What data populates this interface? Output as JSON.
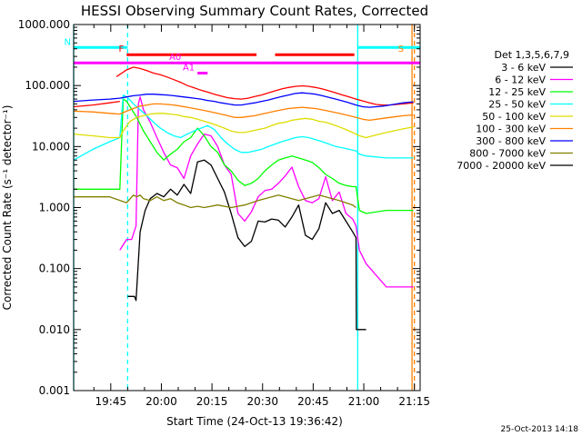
{
  "chart_data": {
    "type": "line",
    "title": "HESSI Observing Summary Count Rates, Corrected",
    "xlabel": "Start Time (24-Oct-13 19:36:42)",
    "ylabel": "Corrected Count Rate (s⁻¹ detector⁻¹)",
    "y_scale": "log",
    "ylim": [
      0.001,
      1000
    ],
    "xlim_minutes": [
      -2.7,
      100.0
    ],
    "y_ticks": [
      {
        "v": 1000,
        "label": "1000.000"
      },
      {
        "v": 100,
        "label": "100.000"
      },
      {
        "v": 10,
        "label": "10.000"
      },
      {
        "v": 1,
        "label": "1.000"
      },
      {
        "v": 0.1,
        "label": "0.100"
      },
      {
        "v": 0.01,
        "label": "0.010"
      },
      {
        "v": 0.001,
        "label": "0.001"
      }
    ],
    "x_ticks": [
      {
        "t": 8.3,
        "label": "19:45"
      },
      {
        "t": 23.3,
        "label": "20:00"
      },
      {
        "t": 38.3,
        "label": "20:15"
      },
      {
        "t": 53.3,
        "label": "20:30"
      },
      {
        "t": 68.3,
        "label": "20:45"
      },
      {
        "t": 83.3,
        "label": "21:00"
      },
      {
        "t": 98.3,
        "label": "21:15"
      }
    ],
    "legend_header": "Det 1,3,5,6,7,9",
    "series": [
      {
        "name": "3 - 6 keV",
        "color": "#000000",
        "x": [
          13.3,
          15.3,
          15.8,
          17,
          18.5,
          20,
          22,
          24,
          26,
          28,
          30,
          32,
          34,
          36,
          38,
          40,
          42,
          44,
          46,
          48,
          50,
          52,
          54,
          56,
          58,
          60,
          62,
          64,
          66,
          68,
          70,
          72,
          74,
          76,
          78,
          80,
          81,
          81.1,
          81.5,
          84
        ],
        "y": [
          0.035,
          0.035,
          0.03,
          0.4,
          0.9,
          1.4,
          1.7,
          1.5,
          2,
          1.6,
          2.4,
          1.7,
          5.6,
          6,
          5,
          3,
          1.8,
          0.8,
          0.32,
          0.23,
          0.28,
          0.6,
          0.58,
          0.65,
          0.62,
          0.48,
          0.7,
          1.1,
          0.35,
          0.3,
          0.45,
          1.2,
          0.8,
          0.9,
          0.6,
          0.4,
          0.32,
          0.01,
          0.01,
          0.01
        ]
      },
      {
        "name": "6 - 12 keV",
        "color": "#ff00ff",
        "x": [
          11,
          13,
          14.5,
          15.8,
          16.5,
          17,
          18,
          20,
          22,
          24,
          26,
          28,
          30,
          32,
          34,
          36,
          38,
          40,
          42,
          44,
          46,
          48,
          50,
          52,
          54,
          56,
          58,
          60,
          62,
          64,
          66,
          68,
          70,
          72,
          74,
          76,
          78,
          80,
          81,
          82,
          84,
          90,
          98
        ],
        "y": [
          0.2,
          0.3,
          0.3,
          0.5,
          50,
          65,
          40,
          25,
          14,
          8,
          5,
          4.5,
          3,
          7,
          11,
          16,
          15,
          10,
          5,
          3.5,
          0.8,
          0.6,
          0.85,
          1.5,
          1.9,
          2,
          2.5,
          3.3,
          4.6,
          2.2,
          1.3,
          1.2,
          1.4,
          3.2,
          1.3,
          1.8,
          0.8,
          0.65,
          0.5,
          0.2,
          0.12,
          0.05,
          0.05
        ]
      },
      {
        "name": "12 - 25 keV",
        "color": "#00ff00",
        "x": [
          -2.7,
          3,
          8,
          11,
          12,
          13,
          14,
          16,
          18,
          20,
          22,
          24,
          26,
          28,
          30,
          32,
          34,
          36,
          38,
          40,
          42,
          44,
          46,
          48,
          50,
          52,
          54,
          56,
          58,
          60,
          62,
          64,
          66,
          68,
          70,
          72,
          74,
          76,
          78,
          80,
          81,
          82,
          84,
          90,
          98
        ],
        "y": [
          2,
          2,
          2,
          2,
          60,
          55,
          45,
          30,
          18,
          12,
          8,
          6,
          7.5,
          9,
          12,
          14,
          20,
          15,
          10,
          8,
          5,
          4,
          2.8,
          2.3,
          2.5,
          3,
          4,
          5,
          6,
          6.5,
          7,
          6.5,
          6,
          5.5,
          4.5,
          3.5,
          3,
          2.5,
          2.3,
          2.2,
          2.2,
          0.9,
          0.8,
          0.9,
          0.9
        ]
      },
      {
        "name": "25 - 50 keV",
        "color": "#00ffff",
        "x": [
          -2.7,
          3,
          8,
          11,
          12,
          13,
          14,
          15,
          17,
          19,
          21,
          23,
          25,
          27,
          29,
          31,
          33,
          35,
          37,
          39,
          41,
          43,
          45,
          47,
          49,
          51,
          53,
          55,
          57,
          59,
          61,
          63,
          65,
          67,
          69,
          71,
          73,
          75,
          77,
          79,
          81,
          82,
          84,
          90,
          98
        ],
        "y": [
          6,
          9,
          12,
          14,
          70,
          65,
          58,
          50,
          40,
          32,
          25,
          20,
          17,
          15,
          14,
          16,
          18,
          20,
          22,
          19,
          14,
          11,
          9,
          8,
          8,
          8.5,
          9,
          10,
          11,
          12,
          13,
          14,
          14.5,
          14,
          13,
          12,
          11,
          10,
          9.5,
          9,
          8.5,
          7.5,
          7,
          6.5,
          6.5
        ]
      },
      {
        "name": "50 - 100 keV",
        "color": "#dddd00",
        "x": [
          -2.7,
          3,
          8,
          11,
          12,
          14,
          16,
          18,
          20,
          22,
          24,
          26,
          28,
          30,
          32,
          34,
          36,
          38,
          40,
          42,
          44,
          46,
          48,
          50,
          52,
          54,
          56,
          58,
          60,
          62,
          64,
          66,
          68,
          70,
          72,
          74,
          76,
          78,
          80,
          82,
          84,
          86,
          88,
          90,
          92,
          94,
          96,
          98
        ],
        "y": [
          16,
          15,
          14,
          14,
          18,
          26,
          30,
          32,
          34,
          35,
          35,
          34,
          33,
          31,
          30,
          28,
          26,
          24,
          22,
          20,
          18,
          17,
          17,
          18,
          19,
          20,
          22,
          24,
          25,
          27,
          28,
          29,
          28,
          26,
          25,
          23,
          21,
          19,
          17,
          15,
          14,
          15,
          16,
          17,
          18,
          19,
          20,
          21
        ]
      },
      {
        "name": "100 - 300 keV",
        "color": "#ff8000",
        "x": [
          -2.7,
          3,
          8,
          11,
          13,
          15,
          17,
          19,
          21,
          23,
          25,
          27,
          29,
          31,
          33,
          35,
          37,
          39,
          41,
          43,
          45,
          47,
          49,
          51,
          53,
          55,
          57,
          59,
          61,
          63,
          65,
          67,
          69,
          71,
          73,
          75,
          77,
          79,
          81,
          83,
          85,
          87,
          89,
          91,
          93,
          95,
          98
        ],
        "y": [
          38,
          37,
          35,
          34,
          38,
          42,
          46,
          48,
          50,
          50,
          49,
          48,
          46,
          44,
          42,
          40,
          38,
          36,
          34,
          32,
          30,
          30,
          31,
          32,
          34,
          36,
          38,
          40,
          42,
          43,
          44,
          43,
          42,
          40,
          38,
          36,
          34,
          32,
          30,
          28,
          27,
          28,
          29,
          30,
          31,
          32,
          33
        ]
      },
      {
        "name": "300 - 800 keV",
        "color": "#0000ff",
        "x": [
          -2.7,
          3,
          8,
          11,
          13,
          15,
          17,
          19,
          21,
          23,
          25,
          27,
          29,
          31,
          33,
          35,
          37,
          39,
          41,
          43,
          45,
          47,
          49,
          51,
          53,
          55,
          57,
          59,
          61,
          63,
          65,
          67,
          69,
          71,
          73,
          75,
          77,
          79,
          81,
          83,
          85,
          87,
          89,
          91,
          93,
          95,
          98
        ],
        "y": [
          55,
          58,
          60,
          62,
          65,
          68,
          70,
          72,
          72,
          71,
          70,
          68,
          66,
          64,
          62,
          60,
          57,
          55,
          52,
          50,
          48,
          48,
          50,
          52,
          55,
          58,
          62,
          66,
          70,
          74,
          76,
          74,
          72,
          68,
          64,
          60,
          56,
          52,
          48,
          45,
          44,
          45,
          46,
          48,
          50,
          52,
          54
        ]
      },
      {
        "name": "800 - 7000 keV",
        "color": "#808000",
        "x": [
          -2.7,
          8,
          13,
          15,
          16,
          17,
          18,
          20,
          22,
          24,
          26,
          28,
          30,
          32,
          34,
          36,
          40,
          44,
          48,
          50,
          52,
          54,
          56,
          58,
          60,
          62,
          64,
          66,
          68,
          70,
          72,
          74,
          76,
          78,
          80,
          81
        ],
        "y": [
          1.5,
          1.5,
          1.2,
          1.6,
          1.5,
          1.6,
          1.4,
          1.3,
          1.5,
          1.3,
          1.4,
          1.2,
          1.1,
          1.0,
          1.05,
          1.0,
          1.1,
          1.0,
          1.1,
          1.2,
          1.3,
          1.4,
          1.5,
          1.6,
          1.5,
          1.4,
          1.3,
          1.4,
          1.5,
          1.6,
          1.5,
          1.4,
          1.3,
          1.2,
          1.1,
          1.0
        ]
      },
      {
        "name": "7000 - 20000 keV",
        "color": "#000000",
        "x": [],
        "y": []
      }
    ],
    "ext_series": [
      {
        "color": "#ff0000",
        "x": [
          10,
          13,
          15,
          17,
          19,
          21,
          23,
          25,
          27,
          29,
          31,
          33,
          35,
          37,
          39,
          41,
          43,
          45,
          47,
          49,
          51,
          53,
          55,
          57,
          59,
          61,
          63,
          65,
          67,
          69,
          71,
          73,
          75,
          77,
          79,
          81,
          83,
          85,
          87,
          89,
          91,
          93,
          95,
          98
        ],
        "y": [
          140,
          180,
          200,
          190,
          175,
          160,
          150,
          138,
          125,
          113,
          100,
          92,
          84,
          78,
          72,
          67,
          63,
          61,
          60,
          62,
          66,
          70,
          76,
          82,
          88,
          93,
          97,
          99,
          97,
          93,
          88,
          82,
          76,
          70,
          65,
          60,
          56,
          52,
          49,
          48,
          48,
          49,
          50,
          52
        ]
      },
      {
        "color": "#ff0000",
        "x": [
          -2.7,
          3,
          8,
          11
        ],
        "y": [
          45,
          48,
          52,
          55
        ]
      }
    ],
    "attenuator_bars": [
      {
        "label": "N",
        "color": "#00ffff",
        "t0": -2.7,
        "t1": 13.3,
        "v": 420
      },
      {
        "label": "",
        "color": "#00ffff",
        "t0": 81.5,
        "t1": 100,
        "v": 420
      },
      {
        "label": "F",
        "color": "#ff0000",
        "t0": 13.0,
        "t1": 51.5,
        "v": 320
      },
      {
        "label": "",
        "color": "#ff0000",
        "t0": 57.0,
        "t1": 80.5,
        "v": 320
      },
      {
        "label": "",
        "color": "#ff00ff",
        "t0": -2.7,
        "t1": 100,
        "v": 235
      },
      {
        "label": "A0",
        "color": "#ff00ff",
        "t0": 30.0,
        "t1": 31.0,
        "v": 235
      },
      {
        "label": "A1",
        "color": "#ff00ff",
        "t0": 34.0,
        "t1": 37.0,
        "v": 160
      },
      {
        "label": "S",
        "color": "#ff8000",
        "t0": 96.0,
        "t1": 96.0,
        "v": 320
      }
    ],
    "vlines": [
      {
        "t": -2.7,
        "color": "#00ffff",
        "dash": false
      },
      {
        "t": 13.3,
        "color": "#00ffff",
        "dash": true
      },
      {
        "t": 81.5,
        "color": "#00ffff",
        "dash": false
      },
      {
        "t": 97.6,
        "color": "#ff8000",
        "dash": false
      },
      {
        "t": 98.3,
        "color": "#ff8000",
        "dash": true
      }
    ]
  },
  "timestamp": "25-Oct-2013 14:18"
}
